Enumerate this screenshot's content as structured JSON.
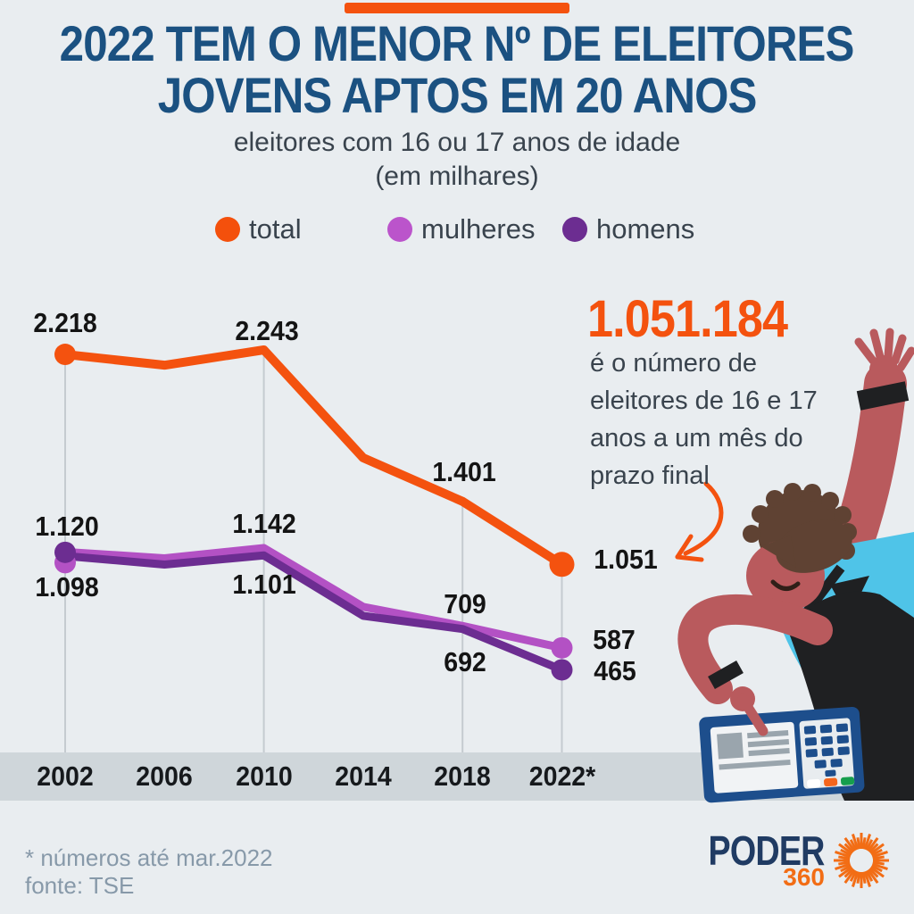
{
  "page": {
    "background": "#e9edf0",
    "top_bar_color": "#f4520f",
    "axis_band_color": "#cfd6da",
    "gridline_color": "#c5cbd0"
  },
  "colors": {
    "title_navy": "#1b5181",
    "body_slate": "#39434d",
    "label_black": "#141414",
    "footnote_gray": "#8799a9",
    "accent_orange": "#f4520f",
    "logo_navy": "#203b63",
    "logo_orange": "#f26d15"
  },
  "header": {
    "title_line1": "2022 TEM O MENOR Nº DE ELEITORES",
    "title_line2": "JOVENS APTOS EM 20 ANOS",
    "subtitle_line1": "eleitores com 16 ou 17 anos de idade",
    "subtitle_line2": "(em milhares)"
  },
  "legend": {
    "items": [
      {
        "label": "total",
        "color": "#f4500c"
      },
      {
        "label": "mulheres",
        "color": "#bb54cb"
      },
      {
        "label": "homens",
        "color": "#6c2d91"
      }
    ]
  },
  "chart_data": {
    "type": "line",
    "title": "2022 TEM O MENOR Nº DE ELEITORES JOVENS APTOS EM 20 ANOS",
    "subtitle": "eleitores com 16 ou 17 anos de idade (em milhares)",
    "unit": "milhares",
    "legend_position": "top",
    "categories": [
      "2002",
      "2006",
      "2010",
      "2014",
      "2018",
      "2022*"
    ],
    "series": [
      {
        "name": "total",
        "color": "#f4520f",
        "values": [
          2218,
          2158,
          2243,
          1643,
          1401,
          1051
        ]
      },
      {
        "name": "mulheres",
        "color": "#b351c4",
        "values": [
          1120,
          1085,
          1142,
          815,
          709,
          587
        ]
      },
      {
        "name": "homens",
        "color": "#6c2d91",
        "values": [
          1098,
          1050,
          1101,
          765,
          692,
          465
        ]
      }
    ],
    "labeled_points": {
      "total": {
        "2002": "2.218",
        "2010": "2.243",
        "2018": "1.401",
        "2022*": "1.051"
      },
      "mulheres": {
        "2002": "1.120",
        "2010": "1.142",
        "2018": "709",
        "2022*": "587"
      },
      "homens": {
        "2002": "1.098",
        "2010": "1.101",
        "2018": "692",
        "2022*": "465"
      }
    },
    "gridline_categories_idx": [
      0,
      2,
      4,
      5
    ],
    "ylim": [
      400,
      2350
    ],
    "grid": "vertical-partial"
  },
  "callout": {
    "big_number": "1.051.184",
    "text": "é o número de eleitores de 16 e 17 anos a um mês  do prazo final"
  },
  "footer": {
    "note_line1": "* números até mar.2022",
    "note_line2": "fonte: TSE",
    "logo_text": "PODER",
    "logo_number": "360"
  }
}
